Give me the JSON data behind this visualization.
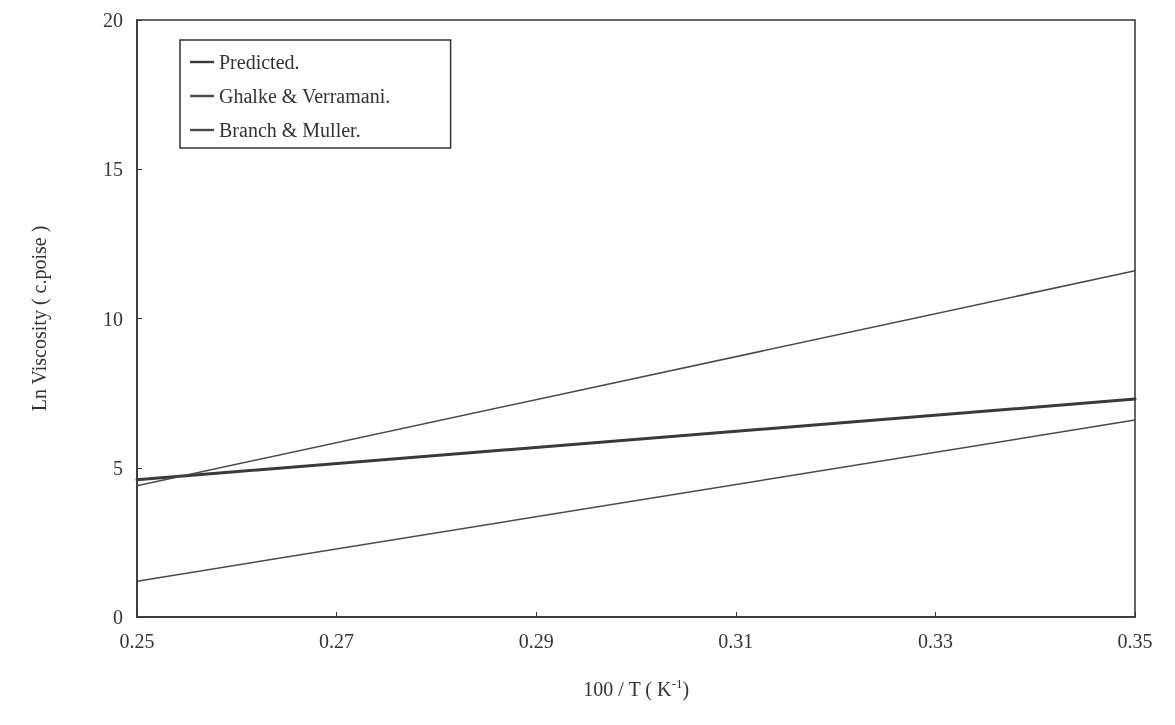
{
  "chart_data": {
    "type": "line",
    "xlabel": "100 / T ( K$^{-1}$)",
    "ylabel": "Ln Viscosity ( c.poise )",
    "x": [
      0.25,
      0.35
    ],
    "series": [
      {
        "name": "Predicted.",
        "color": "#3a3a3a",
        "values": [
          4.6,
          7.3
        ]
      },
      {
        "name": "Ghalke & Verramani.",
        "color": "#4a4a4a",
        "values": [
          4.4,
          11.6
        ]
      },
      {
        "name": "Branch & Muller.",
        "color": "#4a4a4a",
        "values": [
          1.2,
          6.6
        ]
      }
    ],
    "xlim": [
      0.25,
      0.35
    ],
    "xticks": [
      0.25,
      0.27,
      0.29,
      0.31,
      0.33,
      0.35
    ],
    "ylim": [
      0,
      20
    ],
    "yticks": [
      0,
      5,
      10,
      15,
      20
    ],
    "grid": false,
    "legend": "top left",
    "marker": "none",
    "line_style": "solid"
  }
}
